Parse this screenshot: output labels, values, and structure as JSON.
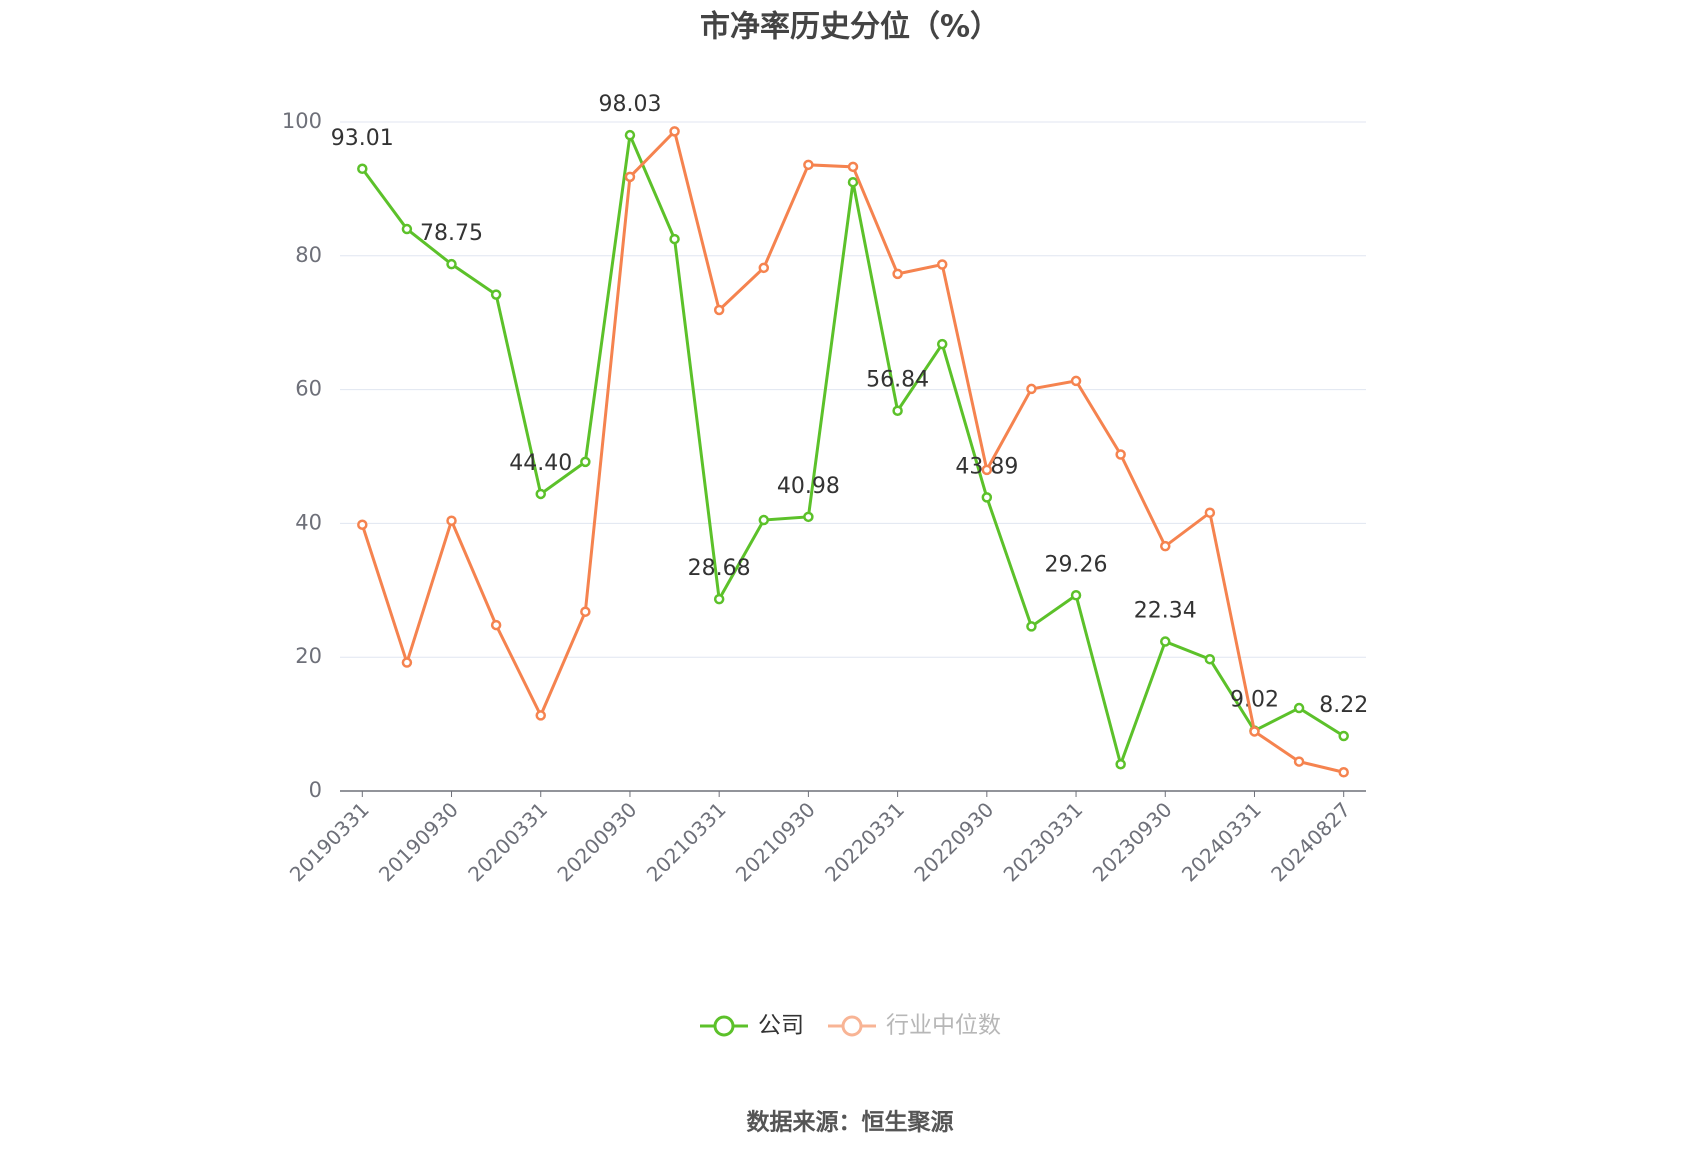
{
  "chart_data": {
    "type": "line",
    "title": "市净率历史分位（%）",
    "source": "数据来源：恒生聚源",
    "categories": [
      "20190331",
      null,
      "20190930",
      null,
      "20200331",
      null,
      "20200930",
      null,
      "20210331",
      null,
      "20210930",
      null,
      "20220331",
      null,
      "20220930",
      null,
      "20230331",
      null,
      "20230930",
      null,
      "20240331",
      null,
      "20240827"
    ],
    "series": [
      {
        "name": "公司",
        "color": "#5cc12a",
        "values": [
          93.01,
          84,
          78.75,
          74.2,
          44.4,
          49.2,
          98.03,
          82.5,
          28.68,
          40.5,
          40.98,
          91,
          56.84,
          66.8,
          43.89,
          24.6,
          29.26,
          4,
          22.34,
          19.7,
          9.02,
          12.4,
          8.22
        ],
        "value_labels": [
          "93.01",
          null,
          "78.75",
          null,
          "44.40",
          null,
          "98.03",
          null,
          "28.68",
          null,
          "40.98",
          null,
          "56.84",
          null,
          "43.89",
          null,
          "29.26",
          null,
          "22.34",
          null,
          "9.02",
          null,
          "8.22"
        ]
      },
      {
        "name": "行业中位数",
        "color": "#f5834f",
        "values": [
          39.8,
          19.2,
          40.4,
          24.8,
          11.3,
          26.8,
          91.8,
          98.6,
          71.9,
          78.2,
          93.6,
          93.3,
          77.3,
          78.7,
          48.0,
          60.1,
          61.3,
          50.3,
          36.6,
          41.6,
          8.9,
          4.4,
          2.8
        ]
      }
    ],
    "ylim": [
      0,
      100
    ],
    "yticks": [
      0,
      20,
      40,
      60,
      80,
      100
    ],
    "grid": true
  }
}
